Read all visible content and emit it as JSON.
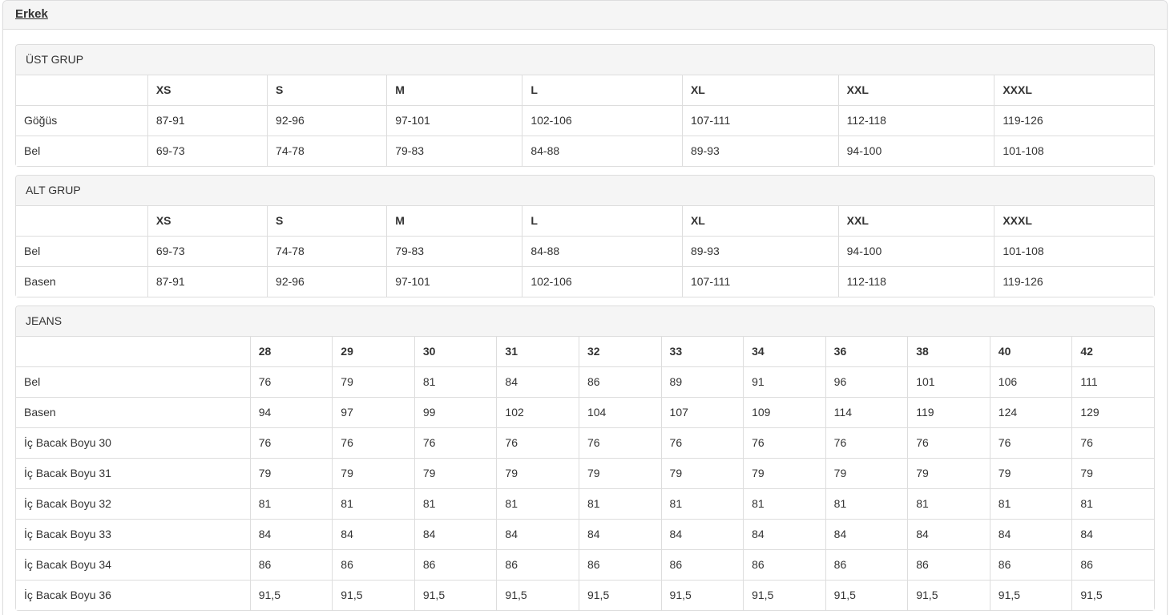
{
  "page": {
    "title": "Erkek"
  },
  "colors": {
    "heading_bg": "#f5f5f5",
    "border": "#dddddd",
    "text": "#333333",
    "page_bg": "#ffffff"
  },
  "sections": [
    {
      "title": "ÜST GRUP",
      "columns": [
        "",
        "XS",
        "S",
        "M",
        "L",
        "XL",
        "XXL",
        "XXXL"
      ],
      "rows": [
        {
          "label": "Göğüs",
          "values": [
            "87-91",
            "92-96",
            "97-101",
            "102-106",
            "107-111",
            "112-118",
            "119-126"
          ]
        },
        {
          "label": "Bel",
          "values": [
            "69-73",
            "74-78",
            "79-83",
            "84-88",
            "89-93",
            "94-100",
            "101-108"
          ]
        }
      ]
    },
    {
      "title": "ALT GRUP",
      "columns": [
        "",
        "XS",
        "S",
        "M",
        "L",
        "XL",
        "XXL",
        "XXXL"
      ],
      "rows": [
        {
          "label": "Bel",
          "values": [
            "69-73",
            "74-78",
            "79-83",
            "84-88",
            "89-93",
            "94-100",
            "101-108"
          ]
        },
        {
          "label": "Basen",
          "values": [
            "87-91",
            "92-96",
            "97-101",
            "102-106",
            "107-111",
            "112-118",
            "119-126"
          ]
        }
      ]
    },
    {
      "title": "JEANS",
      "columns": [
        "",
        "28",
        "29",
        "30",
        "31",
        "32",
        "33",
        "34",
        "36",
        "38",
        "40",
        "42"
      ],
      "rows": [
        {
          "label": "Bel",
          "values": [
            "76",
            "79",
            "81",
            "84",
            "86",
            "89",
            "91",
            "96",
            "101",
            "106",
            "111"
          ]
        },
        {
          "label": "Basen",
          "values": [
            "94",
            "97",
            "99",
            "102",
            "104",
            "107",
            "109",
            "114",
            "119",
            "124",
            "129"
          ]
        },
        {
          "label": "İç Bacak Boyu 30",
          "values": [
            "76",
            "76",
            "76",
            "76",
            "76",
            "76",
            "76",
            "76",
            "76",
            "76",
            "76"
          ]
        },
        {
          "label": "İç Bacak Boyu 31",
          "values": [
            "79",
            "79",
            "79",
            "79",
            "79",
            "79",
            "79",
            "79",
            "79",
            "79",
            "79"
          ]
        },
        {
          "label": "İç Bacak Boyu 32",
          "values": [
            "81",
            "81",
            "81",
            "81",
            "81",
            "81",
            "81",
            "81",
            "81",
            "81",
            "81"
          ]
        },
        {
          "label": "İç Bacak Boyu 33",
          "values": [
            "84",
            "84",
            "84",
            "84",
            "84",
            "84",
            "84",
            "84",
            "84",
            "84",
            "84"
          ]
        },
        {
          "label": "İç Bacak Boyu 34",
          "values": [
            "86",
            "86",
            "86",
            "86",
            "86",
            "86",
            "86",
            "86",
            "86",
            "86",
            "86"
          ]
        },
        {
          "label": "İç Bacak Boyu 36",
          "values": [
            "91,5",
            "91,5",
            "91,5",
            "91,5",
            "91,5",
            "91,5",
            "91,5",
            "91,5",
            "91,5",
            "91,5",
            "91,5"
          ]
        }
      ]
    }
  ]
}
